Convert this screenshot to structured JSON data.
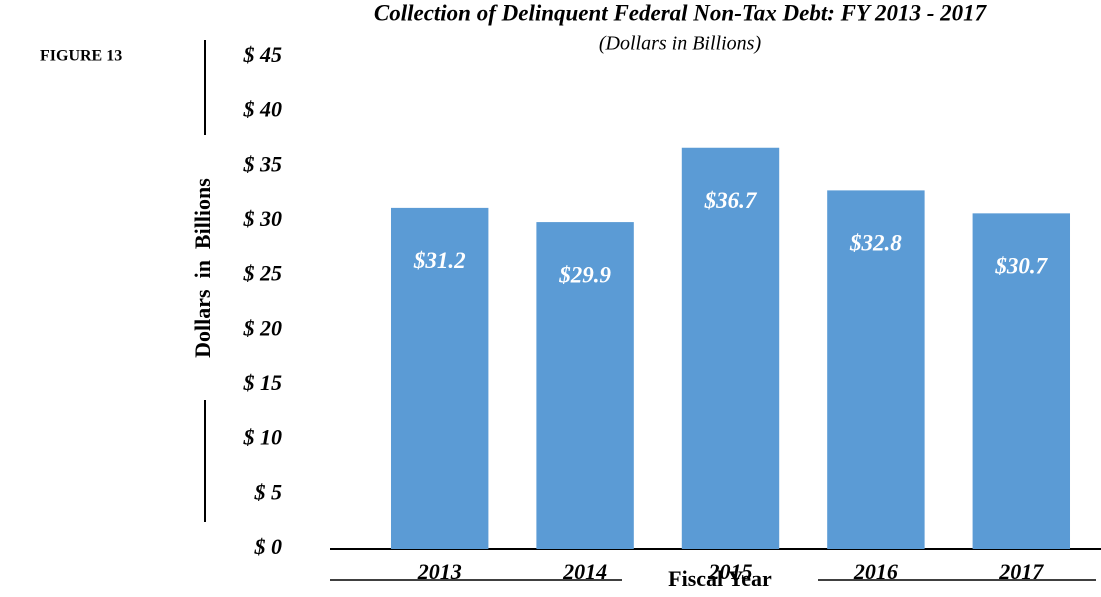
{
  "figure_label": "FIGURE 13",
  "chart_data": {
    "type": "bar",
    "title": "Collection of Delinquent Federal Non-Tax Debt: FY 2013 - 2017",
    "subtitle": "(Dollars in Billions)",
    "x_label": "Fiscal Year",
    "y_label": "Dollars  in  Billions",
    "categories": [
      "2013",
      "2014",
      "2015",
      "2016",
      "2017"
    ],
    "values": [
      31.2,
      29.9,
      36.7,
      32.8,
      30.7
    ],
    "value_labels": [
      "$31.2",
      "$29.9",
      "$36.7",
      "$32.8",
      "$30.7"
    ],
    "color": "#5b9bd5",
    "ylim": [
      0,
      45
    ],
    "yticks": [
      {
        "value": 0,
        "label": "$ 0"
      },
      {
        "value": 5,
        "label": "$ 5"
      },
      {
        "value": 10,
        "label": "$ 10"
      },
      {
        "value": 15,
        "label": "$ 15"
      },
      {
        "value": 20,
        "label": "$ 20"
      },
      {
        "value": 25,
        "label": "$ 25"
      },
      {
        "value": 30,
        "label": "$ 30"
      },
      {
        "value": 35,
        "label": "$ 35"
      },
      {
        "value": 40,
        "label": "$ 40"
      },
      {
        "value": 45,
        "label": "$ 45"
      }
    ],
    "grid": false
  }
}
